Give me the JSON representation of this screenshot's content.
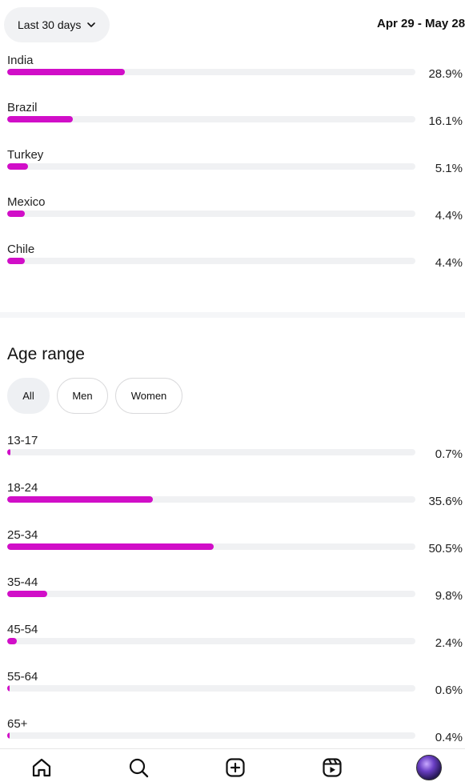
{
  "header": {
    "range_label": "Last 30 days",
    "date_range": "Apr 29 - May 28"
  },
  "countries": [
    {
      "label": "India",
      "pct_text": "28.9%",
      "value": 28.9
    },
    {
      "label": "Brazil",
      "pct_text": "16.1%",
      "value": 16.1
    },
    {
      "label": "Turkey",
      "pct_text": "5.1%",
      "value": 5.1
    },
    {
      "label": "Mexico",
      "pct_text": "4.4%",
      "value": 4.4
    },
    {
      "label": "Chile",
      "pct_text": "4.4%",
      "value": 4.4
    }
  ],
  "age_section": {
    "title": "Age range",
    "filters": [
      {
        "label": "All",
        "active": true
      },
      {
        "label": "Men",
        "active": false
      },
      {
        "label": "Women",
        "active": false
      }
    ],
    "rows": [
      {
        "label": "13-17",
        "pct_text": "0.7%",
        "value": 0.7
      },
      {
        "label": "18-24",
        "pct_text": "35.6%",
        "value": 35.6
      },
      {
        "label": "25-34",
        "pct_text": "50.5%",
        "value": 50.5
      },
      {
        "label": "35-44",
        "pct_text": "9.8%",
        "value": 9.8
      },
      {
        "label": "45-54",
        "pct_text": "2.4%",
        "value": 2.4
      },
      {
        "label": "55-64",
        "pct_text": "0.6%",
        "value": 0.6
      },
      {
        "label": "65+",
        "pct_text": "0.4%",
        "value": 0.4
      }
    ]
  },
  "bottom_nav": [
    "home-icon",
    "search-icon",
    "create-icon",
    "reels-icon",
    "profile-avatar"
  ],
  "colors": {
    "bar": "#d10ec8",
    "track": "#f0f1f3"
  }
}
